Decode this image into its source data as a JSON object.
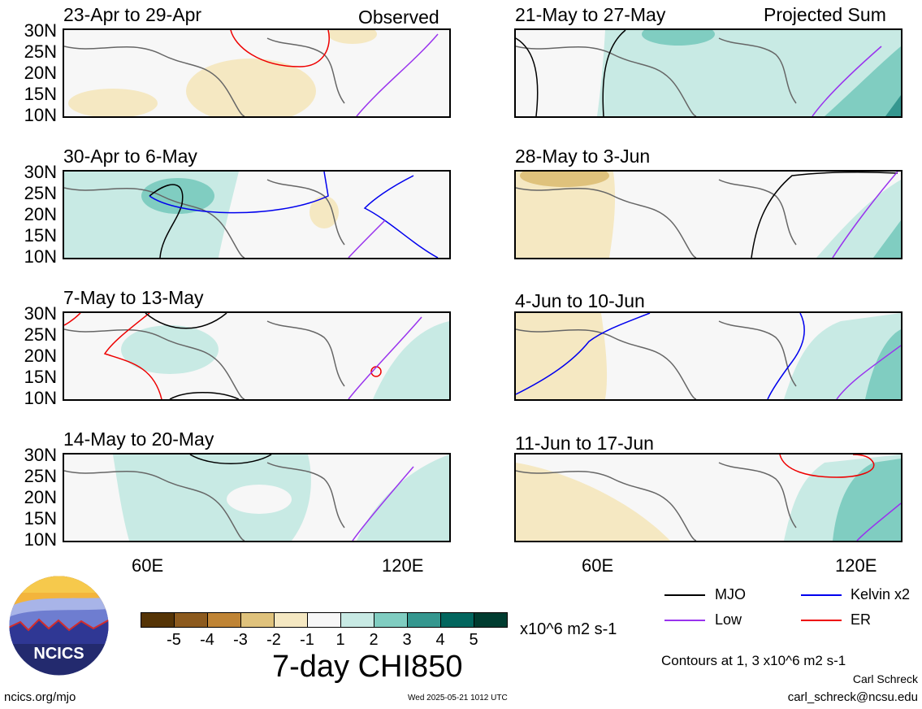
{
  "panels_left": [
    {
      "title": "23-Apr to 29-Apr",
      "note": "Observed"
    },
    {
      "title": "30-Apr to 6-May",
      "note": ""
    },
    {
      "title": "7-May to 13-May",
      "note": ""
    },
    {
      "title": "14-May to 20-May",
      "note": ""
    }
  ],
  "panels_right": [
    {
      "title": "21-May to 27-May",
      "note": "Projected Sum"
    },
    {
      "title": "28-May to 3-Jun",
      "note": ""
    },
    {
      "title": "4-Jun to 10-Jun",
      "note": ""
    },
    {
      "title": "11-Jun to 17-Jun",
      "note": ""
    }
  ],
  "lat_labels": [
    "30N",
    "25N",
    "20N",
    "15N",
    "10N"
  ],
  "lon_labels": [
    "60E",
    "120E"
  ],
  "colorbar": {
    "colors": [
      "#553406",
      "#8c5a1e",
      "#bf8435",
      "#dfc27c",
      "#f5e8c2",
      "#f7f7f7",
      "#c8eae4",
      "#80cdc1",
      "#35978f",
      "#02665e",
      "#003c30"
    ],
    "labels": [
      "-5",
      "-4",
      "-3",
      "-2",
      "-1",
      "1",
      "2",
      "3",
      "4",
      "5"
    ],
    "units": "x10^6 m2 s-1",
    "title": "7-day CHI850"
  },
  "legend": {
    "items": [
      {
        "label": "MJO",
        "color": "#000000"
      },
      {
        "label": "Kelvin x2",
        "color": "#0000ee"
      },
      {
        "label": "Low",
        "color": "#9933ee"
      },
      {
        "label": "ER",
        "color": "#ee0000"
      }
    ],
    "contours_note": "Contours at 1, 3 x10^6 m2 s-1"
  },
  "credits": {
    "author": "Carl Schreck",
    "email": "carl_schreck@ncsu.edu",
    "url": "ncics.org/mjo",
    "timestamp": "Wed 2025-05-21 1012 UTC",
    "logo_text": "NCICS"
  }
}
